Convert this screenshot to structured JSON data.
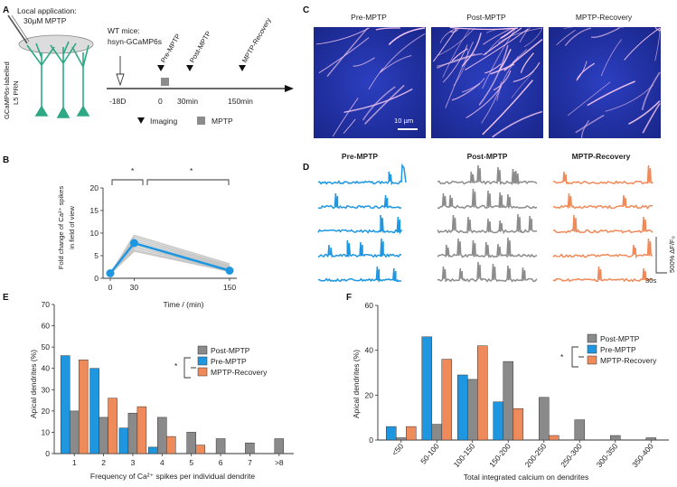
{
  "colors": {
    "pre": "#1f97e0",
    "post": "#8a8a8a",
    "recovery": "#ef8a5a",
    "neuron": "#2fa886",
    "micro_bg": "#1f2f9a",
    "micro_fiber": "#f7c8f0",
    "traces_post": "#8c8c8c",
    "gray_lines": "#c6c6c6"
  },
  "panel_a": {
    "label": "A",
    "local_app": [
      "Local application:",
      "30µM MPTP"
    ],
    "side_label": [
      "GCaMP6s-labelled",
      "L5 PRN"
    ],
    "mice": [
      "WT mice:",
      "hsyn-GCaMP6s"
    ],
    "events": [
      "Pre-MPTP",
      "Post-MPTP",
      "MPTP-Recovery"
    ],
    "ticks": [
      "-18D",
      "0",
      "30min",
      "150min"
    ],
    "legend_imaging": "Imaging",
    "legend_mptp": "MPTP"
  },
  "panel_b": {
    "label": "B",
    "ylabel": [
      "Fold change of Ca²⁺ spikes",
      "in field of view"
    ],
    "xlabel": "Time / (min)",
    "sig": [
      "*",
      "*"
    ],
    "chart_data": {
      "type": "line",
      "x": [
        0,
        30,
        150
      ],
      "xticklabels": [
        "0",
        "30",
        "150"
      ],
      "mean": [
        1.1,
        7.8,
        1.7
      ],
      "individual_y30": [
        9.5,
        9.1,
        8.7,
        8.3,
        7.9,
        7.5,
        7.1,
        6.7,
        6.3,
        6.0
      ],
      "individual_y150": [
        3.2,
        2.9,
        2.7,
        2.5,
        2.3,
        2.1,
        1.9,
        1.8,
        1.6,
        1.5
      ],
      "ylim": [
        0,
        20
      ],
      "yticks": [
        0,
        5,
        10,
        15,
        20
      ],
      "xlabel": "Time / (min)",
      "ylabel": "Fold change of Ca2+ spikes in field of view"
    }
  },
  "panel_c": {
    "label": "C",
    "titles": [
      "Pre-MPTP",
      "Post-MPTP",
      "MPTP-Recovery"
    ],
    "scalebar": "10 µm"
  },
  "panel_d": {
    "label": "D",
    "titles": [
      "Pre-MPTP",
      "Post-MPTP",
      "MPTP-Recovery"
    ],
    "scale_y": "500% ΔF/F₀",
    "scale_x": "30s",
    "traces": {
      "pre": [
        [
          0.84,
          1.0
        ],
        [
          0.2,
          0.8
        ],
        [
          0.74,
          0.95
        ],
        [
          0.12,
          0.75,
          0.34,
          0.5
        ],
        [
          0.7,
          0.9
        ]
      ],
      "post": [
        [
          0.33,
          0.4,
          0.6,
          0.75,
          0.78
        ],
        [
          0.05,
          0.12,
          0.35,
          0.5,
          0.62,
          0.7
        ],
        [
          0.15,
          0.3,
          0.5,
          0.62,
          0.8,
          0.92
        ],
        [
          0.08,
          0.2,
          0.35,
          0.48,
          0.6,
          0.7
        ],
        [
          0.05,
          0.22,
          0.4,
          0.55,
          0.7,
          0.85
        ]
      ],
      "recovery": [
        [
          0.1,
          0.95
        ],
        [
          0.15,
          0.7
        ],
        [
          0.2,
          0.9
        ],
        [
          0.8,
          0.95
        ],
        [
          0.45,
          0.9
        ]
      ]
    }
  },
  "panel_e": {
    "label": "E",
    "ylabel": "Apical dendrites (%)",
    "xlabel": "Frequency of Ca²⁺ spikes per individual dendrite",
    "sig": "*",
    "chart_data": {
      "type": "bar",
      "categories": [
        "1",
        "2",
        "3",
        "4",
        "5",
        "6",
        "7",
        ">8"
      ],
      "series": [
        {
          "name": "Pre-MPTP",
          "values": [
            46,
            40,
            12,
            3,
            0,
            0,
            0,
            0
          ]
        },
        {
          "name": "Post-MPTP",
          "values": [
            20,
            17,
            19,
            17,
            10,
            7,
            5,
            7
          ]
        },
        {
          "name": "MPTP-Recovery",
          "values": [
            44,
            26,
            22,
            8,
            4,
            0,
            0,
            0
          ]
        }
      ],
      "ylim": [
        0,
        70
      ],
      "yticks": [
        0,
        10,
        20,
        30,
        40,
        50,
        60,
        70
      ],
      "legend": [
        "Post-MPTP",
        "Pre-MPTP",
        "MPTP-Recovery"
      ]
    }
  },
  "panel_f": {
    "label": "F",
    "ylabel": "Apical dendrites (%)",
    "xlabel": "Total integrated calcium on dendrites",
    "sig": "*",
    "chart_data": {
      "type": "bar",
      "categories": [
        "<50",
        "50-100",
        "100-150",
        "150-200",
        "200-250",
        "250-300",
        "300-350",
        "350-400"
      ],
      "series": [
        {
          "name": "Pre-MPTP",
          "values": [
            6,
            46,
            29,
            17,
            0,
            0,
            0,
            0
          ]
        },
        {
          "name": "Post-MPTP",
          "values": [
            1,
            7,
            27,
            35,
            19,
            9,
            2,
            1
          ]
        },
        {
          "name": "MPTP-Recovery",
          "values": [
            6,
            36,
            42,
            14,
            2,
            0,
            0,
            0
          ]
        }
      ],
      "ylim": [
        0,
        60
      ],
      "yticks": [
        0,
        20,
        40,
        60
      ],
      "legend": [
        "Post-MPTP",
        "Pre-MPTP",
        "MPTP-Recovery"
      ]
    }
  }
}
